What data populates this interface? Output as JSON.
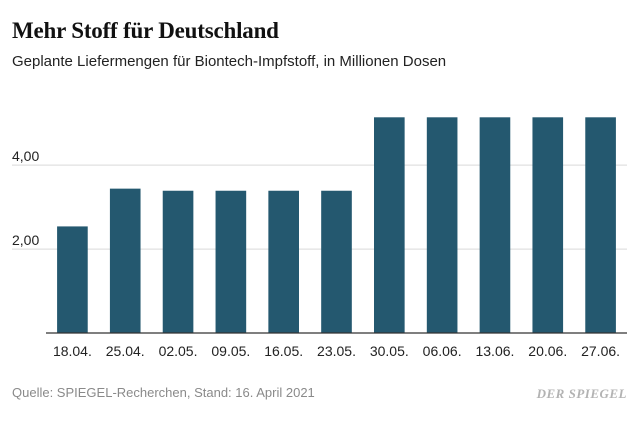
{
  "chart_data": {
    "type": "bar",
    "title": "Mehr Stoff für Deutschland",
    "subtitle": "Geplante Liefermengen für Biontech-Impfstoff, in Millionen Dosen",
    "categories": [
      "18.04.",
      "25.04.",
      "02.05.",
      "09.05.",
      "16.05.",
      "23.05.",
      "30.05.",
      "06.06.",
      "13.06.",
      "20.06.",
      "27.06."
    ],
    "values": [
      2.54,
      3.44,
      3.39,
      3.39,
      3.39,
      3.39,
      5.14,
      5.14,
      5.14,
      5.14,
      5.14
    ],
    "ylim": [
      0,
      5.6
    ],
    "yticks": [
      2,
      4
    ],
    "ytick_labels": [
      "2,00",
      "4,00"
    ],
    "grid": true,
    "bar_color": "#24586f"
  },
  "footer": {
    "source": "Quelle: SPIEGEL-Recherchen, Stand: 16. April 2021",
    "brand": "DER SPIEGEL"
  }
}
